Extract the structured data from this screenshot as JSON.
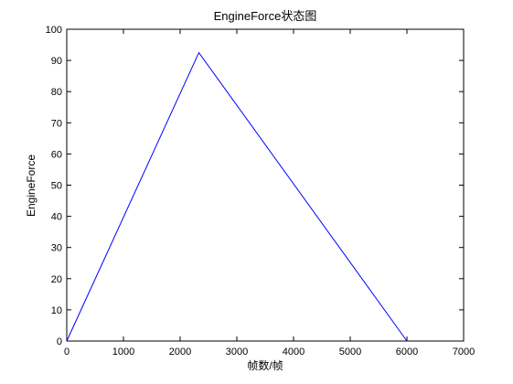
{
  "chart_data": {
    "type": "line",
    "title": "EngineForce状态图",
    "xlabel": "帧数/帧",
    "ylabel": "EngineForce",
    "xlim": [
      0,
      7000
    ],
    "ylim": [
      0,
      100
    ],
    "x_ticks": [
      0,
      1000,
      2000,
      3000,
      4000,
      5000,
      6000,
      7000
    ],
    "y_ticks": [
      0,
      10,
      20,
      30,
      40,
      50,
      60,
      70,
      80,
      90,
      100
    ],
    "grid": false,
    "legend": "none",
    "series": [
      {
        "color": "#0000ff",
        "x": [
          0,
          2330,
          6000
        ],
        "y": [
          0,
          92.5,
          0
        ]
      }
    ]
  }
}
